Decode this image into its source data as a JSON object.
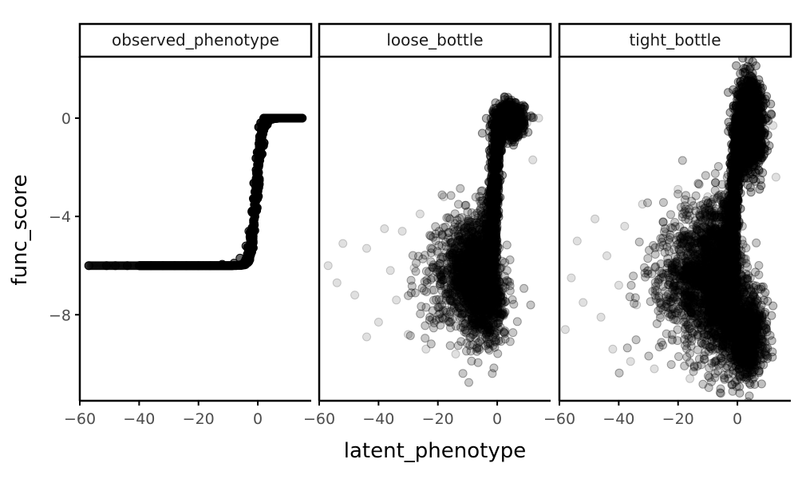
{
  "chart_data": {
    "type": "scatter",
    "xlabel": "latent_phenotype",
    "ylabel": "func_score",
    "facets": [
      "observed_phenotype",
      "loose_bottle",
      "tight_bottle"
    ],
    "xlim": [
      -60,
      18
    ],
    "ylim": [
      -11.5,
      2.5
    ],
    "x_ticks": [
      -60,
      -40,
      -20,
      0
    ],
    "x_tick_labels": [
      "−60",
      "−40",
      "−20",
      "0"
    ],
    "y_ticks": [
      0,
      -4,
      -8
    ],
    "y_tick_labels": [
      "0",
      "−4",
      "−8"
    ],
    "marker": {
      "color": "#000000",
      "opacity": 0.08
    },
    "grid": false,
    "panels": [
      {
        "name": "observed_phenotype",
        "description_of_points": "sigmoid curve: func_score ≈ -6 for latent_phenotype below about -5, rising steeply to 0 near 0",
        "points": [
          [
            -57,
            -6
          ],
          [
            -51,
            -6
          ],
          [
            -48,
            -6
          ],
          [
            -44,
            -6
          ],
          [
            -40,
            -6
          ],
          [
            -36,
            -6
          ],
          [
            -32,
            -6
          ],
          [
            -28,
            -6
          ],
          [
            -24,
            -6
          ],
          [
            -20,
            -6
          ],
          [
            -16,
            -6
          ],
          [
            -12,
            -5.95
          ],
          [
            -8,
            -5.9
          ],
          [
            -6,
            -5.7
          ],
          [
            -4,
            -5.2
          ],
          [
            -3,
            -4.6
          ],
          [
            -2,
            -3.8
          ],
          [
            -1,
            -3.0
          ],
          [
            0,
            -2.2
          ],
          [
            1,
            -1.2
          ],
          [
            2,
            -0.5
          ],
          [
            3,
            -0.15
          ],
          [
            4,
            0
          ],
          [
            6,
            0
          ],
          [
            8,
            0
          ],
          [
            10,
            0
          ],
          [
            12,
            0
          ],
          [
            14,
            0
          ]
        ]
      },
      {
        "name": "loose_bottle",
        "points": [
          [
            -57,
            -6
          ],
          [
            -54,
            -6.7
          ],
          [
            -52,
            -5.1
          ],
          [
            -48,
            -7.2
          ],
          [
            -44,
            -8.9
          ],
          [
            -44,
            -5.3
          ],
          [
            -40,
            -8.3
          ],
          [
            -38,
            -4.5
          ],
          [
            -36,
            -6.2
          ],
          [
            -34,
            -7.4
          ],
          [
            -32,
            -4.6
          ],
          [
            -30,
            -8.8
          ],
          [
            -28,
            -6.1
          ],
          [
            -26,
            -3.9
          ],
          [
            -24,
            -9.4
          ],
          [
            -22,
            -7.0
          ],
          [
            -20,
            -5.5
          ],
          [
            -18,
            -3.2
          ],
          [
            -16,
            -8.1
          ],
          [
            -14,
            -9.6
          ],
          [
            -12,
            -6.4
          ],
          [
            -10,
            -4.2
          ],
          [
            -8,
            -7.6
          ],
          [
            -6,
            -8.6
          ],
          [
            -4,
            -3.9
          ],
          [
            -2,
            -5.5
          ],
          [
            0,
            -1.8
          ],
          [
            2,
            -0.4
          ],
          [
            4,
            0.1
          ],
          [
            6,
            -0.8
          ],
          [
            8,
            0.4
          ],
          [
            10,
            -0.2
          ],
          [
            12,
            -1.7
          ],
          [
            14,
            0
          ]
        ]
      },
      {
        "name": "tight_bottle",
        "points": [
          [
            -58,
            -8.6
          ],
          [
            -56,
            -6.5
          ],
          [
            -54,
            -5.0
          ],
          [
            -52,
            -7.5
          ],
          [
            -48,
            -4.1
          ],
          [
            -46,
            -8.1
          ],
          [
            -44,
            -5.6
          ],
          [
            -42,
            -9.4
          ],
          [
            -40,
            -6.8
          ],
          [
            -38,
            -4.4
          ],
          [
            -36,
            -9.9
          ],
          [
            -34,
            -7.6
          ],
          [
            -32,
            -3.5
          ],
          [
            -30,
            -6.2
          ],
          [
            -28,
            -10.2
          ],
          [
            -26,
            -8.0
          ],
          [
            -24,
            -4.7
          ],
          [
            -22,
            -9.0
          ],
          [
            -20,
            -2.9
          ],
          [
            -18,
            -6.6
          ],
          [
            -16,
            -10.6
          ],
          [
            -14,
            -8.4
          ],
          [
            -12,
            -5.2
          ],
          [
            -10,
            -3.2
          ],
          [
            -8,
            -10.1
          ],
          [
            -6,
            -7.0
          ],
          [
            -4,
            -9.8
          ],
          [
            -2,
            -2.8
          ],
          [
            0,
            -6.0
          ],
          [
            2,
            -1.0
          ],
          [
            4,
            0.6
          ],
          [
            5,
            1.7
          ],
          [
            6,
            -0.5
          ],
          [
            8,
            1.2
          ],
          [
            9,
            -7.2
          ],
          [
            10,
            -9.3
          ],
          [
            12,
            -0.3
          ],
          [
            13,
            -2.4
          ]
        ]
      }
    ]
  }
}
